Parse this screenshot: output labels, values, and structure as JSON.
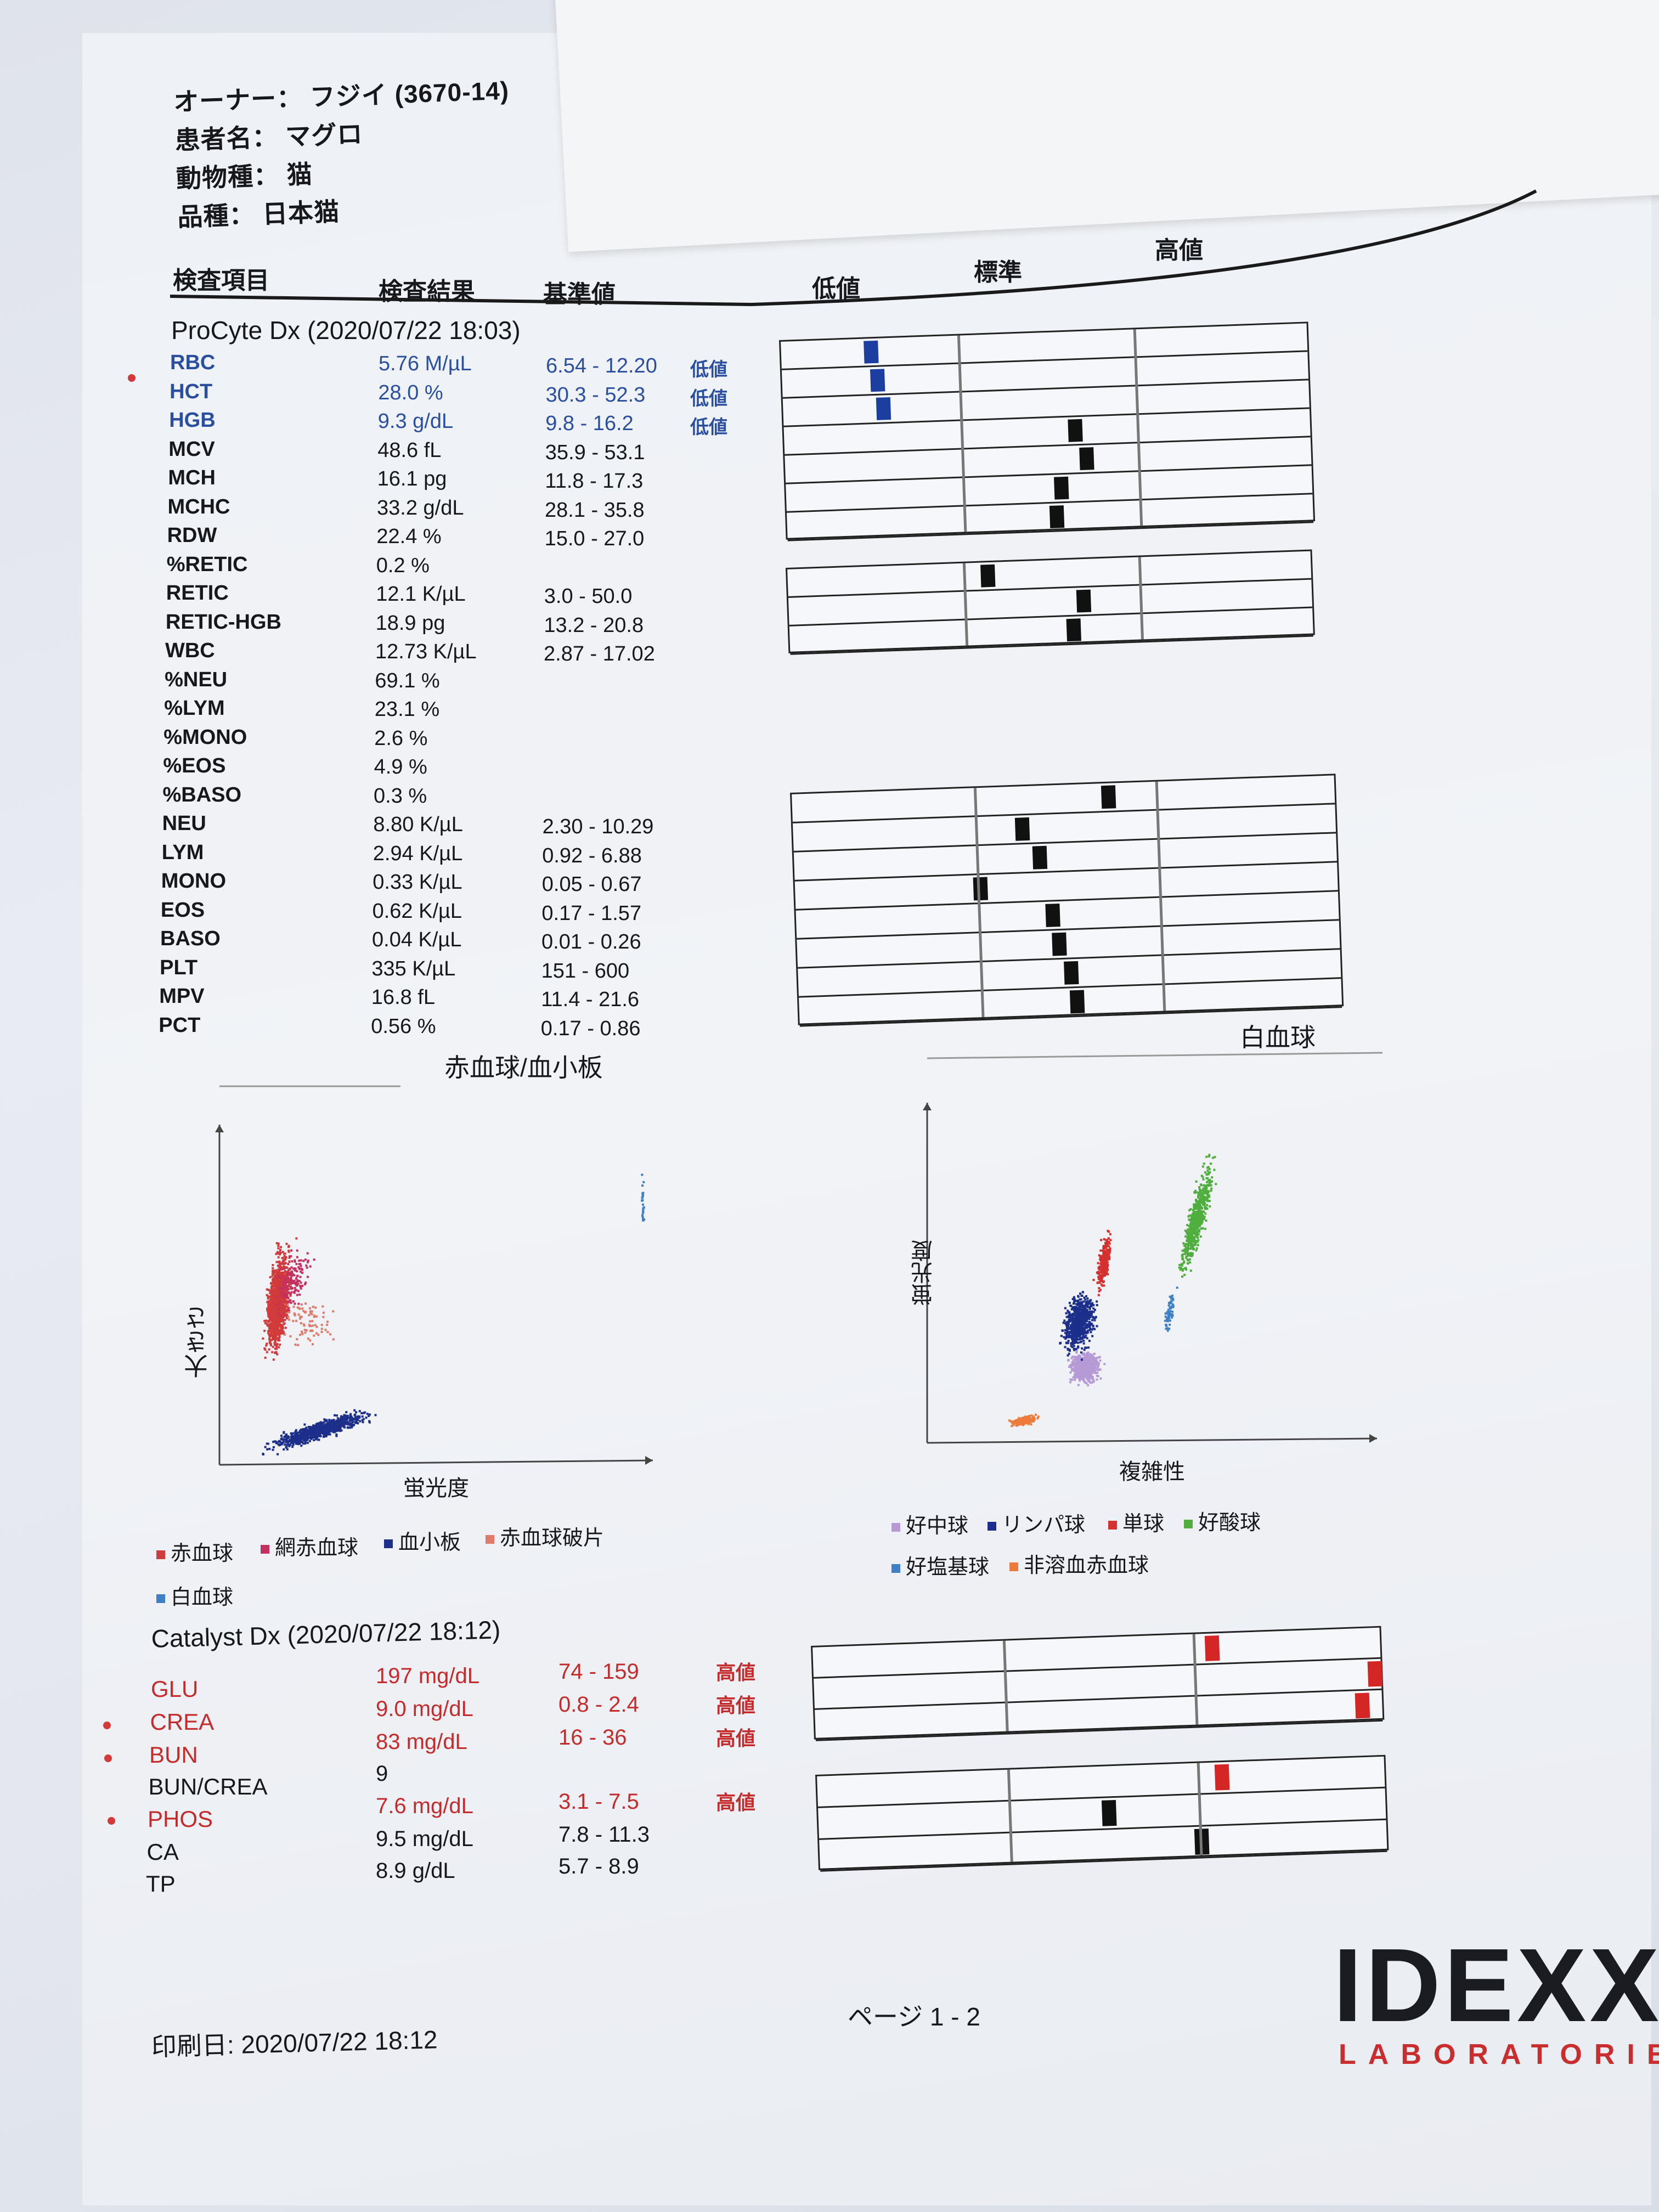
{
  "header": {
    "owner_label": "オーナー：",
    "owner_value": "フジイ (3670-14)",
    "patient_label": "患者名：",
    "patient_value": "マグロ",
    "species_label": "動物種：",
    "species_value": "猫",
    "breed_label": "品種：",
    "breed_value": "日本猫"
  },
  "columns": {
    "item": "検査項目",
    "result": "検査結果",
    "reference": "基準値",
    "low": "低値",
    "normal": "標準",
    "high": "高値"
  },
  "procyte": {
    "title": "ProCyte Dx (2020/07/22 18:03)",
    "rows": [
      {
        "name": "RBC",
        "result": "5.76 M/µL",
        "ref": "6.54 - 12.20",
        "flag": "低値",
        "color": "#2b4fa0"
      },
      {
        "name": "HCT",
        "result": "28.0 %",
        "ref": "30.3 - 52.3",
        "flag": "低値",
        "color": "#2b4fa0"
      },
      {
        "name": "HGB",
        "result": "9.3 g/dL",
        "ref": "9.8 - 16.2",
        "flag": "低値",
        "color": "#2b4fa0"
      },
      {
        "name": "MCV",
        "result": "48.6 fL",
        "ref": "35.9 - 53.1",
        "flag": "",
        "color": "#16181c"
      },
      {
        "name": "MCH",
        "result": "16.1 pg",
        "ref": "11.8 - 17.3",
        "flag": "",
        "color": "#16181c"
      },
      {
        "name": "MCHC",
        "result": "33.2 g/dL",
        "ref": "28.1 - 35.8",
        "flag": "",
        "color": "#16181c"
      },
      {
        "name": "RDW",
        "result": "22.4 %",
        "ref": "15.0 - 27.0",
        "flag": "",
        "color": "#16181c"
      },
      {
        "name": "%RETIC",
        "result": "0.2 %",
        "ref": "",
        "flag": "",
        "color": "#16181c"
      },
      {
        "name": "RETIC",
        "result": "12.1 K/µL",
        "ref": "3.0 - 50.0",
        "flag": "",
        "color": "#16181c"
      },
      {
        "name": "RETIC-HGB",
        "result": "18.9 pg",
        "ref": "13.2 - 20.8",
        "flag": "",
        "color": "#16181c"
      },
      {
        "name": "WBC",
        "result": "12.73 K/µL",
        "ref": "2.87 - 17.02",
        "flag": "",
        "color": "#16181c"
      },
      {
        "name": "%NEU",
        "result": "69.1 %",
        "ref": "",
        "flag": "",
        "color": "#16181c"
      },
      {
        "name": "%LYM",
        "result": "23.1 %",
        "ref": "",
        "flag": "",
        "color": "#16181c"
      },
      {
        "name": "%MONO",
        "result": "2.6 %",
        "ref": "",
        "flag": "",
        "color": "#16181c"
      },
      {
        "name": "%EOS",
        "result": "4.9 %",
        "ref": "",
        "flag": "",
        "color": "#16181c"
      },
      {
        "name": "%BASO",
        "result": "0.3 %",
        "ref": "",
        "flag": "",
        "color": "#16181c"
      },
      {
        "name": "NEU",
        "result": "8.80 K/µL",
        "ref": "2.30 - 10.29",
        "flag": "",
        "color": "#16181c"
      },
      {
        "name": "LYM",
        "result": "2.94 K/µL",
        "ref": "0.92 - 6.88",
        "flag": "",
        "color": "#16181c"
      },
      {
        "name": "MONO",
        "result": "0.33 K/µL",
        "ref": "0.05 - 0.67",
        "flag": "",
        "color": "#16181c"
      },
      {
        "name": "EOS",
        "result": "0.62 K/µL",
        "ref": "0.17 - 1.57",
        "flag": "",
        "color": "#16181c"
      },
      {
        "name": "BASO",
        "result": "0.04 K/µL",
        "ref": "0.01 - 0.26",
        "flag": "",
        "color": "#16181c"
      },
      {
        "name": "PLT",
        "result": "335 K/µL",
        "ref": "151 - 600",
        "flag": "",
        "color": "#16181c"
      },
      {
        "name": "MPV",
        "result": "16.8 fL",
        "ref": "11.4 - 21.6",
        "flag": "",
        "color": "#16181c"
      },
      {
        "name": "PCT",
        "result": "0.56 %",
        "ref": "0.17 - 0.86",
        "flag": "",
        "color": "#16181c"
      }
    ]
  },
  "range_bars": {
    "group1": [
      0.17,
      0.18,
      0.19,
      0.55,
      0.57,
      0.52,
      0.51
    ],
    "group2": [
      0.38,
      0.56,
      0.54
    ],
    "group3": [
      0.58,
      0.42,
      0.45,
      0.34,
      0.47,
      0.48,
      0.5,
      0.51
    ],
    "group4": [
      0.7,
      1.02,
      0.96
    ],
    "group5": [
      0.71,
      0.51,
      0.67
    ]
  },
  "plots": {
    "rbc_title": "赤血球/血小板",
    "rbc_xlabel": "蛍光度",
    "rbc_ylabel": "大きさ",
    "wbc_title": "白血球",
    "wbc_xlabel": "複雑性",
    "wbc_ylabel": "蛍光度",
    "rbc_legend": [
      {
        "label": "赤血球",
        "color": "#d23b3b"
      },
      {
        "label": "網赤血球",
        "color": "#c43060"
      },
      {
        "label": "血小板",
        "color": "#1c2f8a"
      },
      {
        "label": "赤血球破片",
        "color": "#e07a6a"
      },
      {
        "label": "白血球",
        "color": "#3f7fc4"
      }
    ],
    "wbc_legend": [
      {
        "label": "好中球",
        "color": "#b69ad6"
      },
      {
        "label": "リンパ球",
        "color": "#1c2f8a"
      },
      {
        "label": "単球",
        "color": "#d53030"
      },
      {
        "label": "好酸球",
        "color": "#4fae3e"
      },
      {
        "label": "好塩基球",
        "color": "#3f7fc4"
      },
      {
        "label": "非溶血赤血球",
        "color": "#ec7b3c"
      }
    ]
  },
  "catalyst": {
    "title": "Catalyst Dx (2020/07/22 18:12)",
    "rows": [
      {
        "name": "GLU",
        "result": "197 mg/dL",
        "ref": "74 - 159",
        "flag": "高値",
        "color": "#c62b2b"
      },
      {
        "name": "CREA",
        "result": "9.0 mg/dL",
        "ref": "0.8 - 2.4",
        "flag": "高値",
        "color": "#c62b2b"
      },
      {
        "name": "BUN",
        "result": "83 mg/dL",
        "ref": "16 - 36",
        "flag": "高値",
        "color": "#c62b2b"
      },
      {
        "name": "BUN/CREA",
        "result": "9",
        "ref": "",
        "flag": "",
        "color": "#16181c"
      },
      {
        "name": "PHOS",
        "result": "7.6 mg/dL",
        "ref": "3.1 - 7.5",
        "flag": "高値",
        "color": "#c62b2b"
      },
      {
        "name": "CA",
        "result": "9.5 mg/dL",
        "ref": "7.8 - 11.3",
        "flag": "",
        "color": "#16181c"
      },
      {
        "name": "TP",
        "result": "8.9 g/dL",
        "ref": "5.7 - 8.9",
        "flag": "",
        "color": "#16181c"
      }
    ]
  },
  "footer": {
    "print_date": "印刷日: 2020/07/22 18:12",
    "page": "ページ 1 - 2",
    "logo": "IDEXX",
    "logo_sub": "LABORATORIES"
  }
}
